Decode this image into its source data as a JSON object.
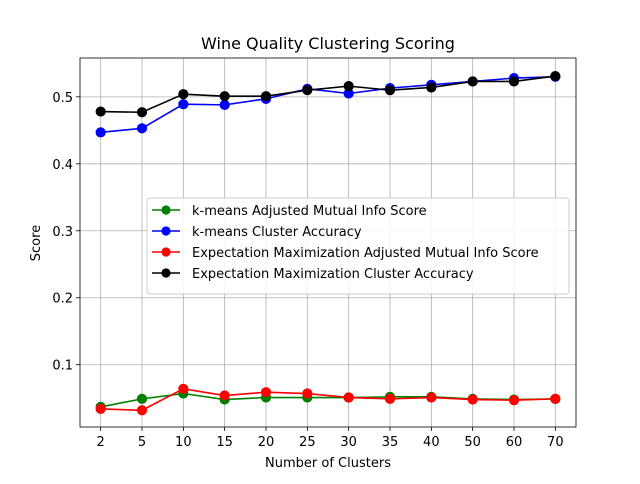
{
  "chart_data": {
    "type": "line",
    "title": "Wine Quality  Clustering Scoring",
    "xlabel": "Number of Clusters",
    "ylabel": "Score",
    "categories": [
      "2",
      "5",
      "10",
      "15",
      "20",
      "25",
      "30",
      "35",
      "40",
      "50",
      "60",
      "70"
    ],
    "ylim": [
      0.007,
      0.558
    ],
    "yticks": [
      "0.1",
      "0.2",
      "0.3",
      "0.4",
      "0.5"
    ],
    "ytick_values": [
      0.1,
      0.2,
      0.3,
      0.4,
      0.5
    ],
    "grid": true,
    "legend_position": "center-right",
    "series": [
      {
        "name": "k-means Adjusted Mutual Info Score",
        "color": "#008000",
        "values": [
          0.037,
          0.049,
          0.057,
          0.048,
          0.051,
          0.051,
          0.051,
          0.052,
          0.052,
          0.049,
          0.048,
          0.049
        ]
      },
      {
        "name": "k-means Cluster Accuracy",
        "color": "#0000ff",
        "values": [
          0.447,
          0.453,
          0.489,
          0.488,
          0.497,
          0.512,
          0.505,
          0.513,
          0.518,
          0.523,
          0.528,
          0.53
        ]
      },
      {
        "name": "Expectation Maximization Adjusted Mutual Info Score",
        "color": "#ff0000",
        "values": [
          0.034,
          0.032,
          0.064,
          0.054,
          0.059,
          0.057,
          0.051,
          0.049,
          0.051,
          0.048,
          0.047,
          0.049
        ]
      },
      {
        "name": "Expectation Maximization Cluster Accuracy",
        "color": "#000000",
        "values": [
          0.478,
          0.477,
          0.504,
          0.501,
          0.501,
          0.51,
          0.516,
          0.51,
          0.514,
          0.523,
          0.523,
          0.531
        ]
      }
    ]
  }
}
